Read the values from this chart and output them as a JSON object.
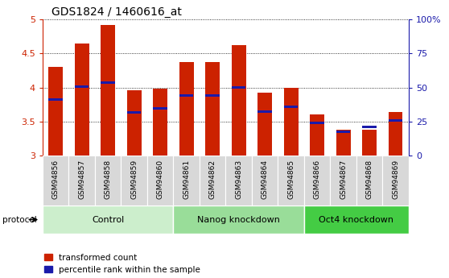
{
  "title": "GDS1824 / 1460616_at",
  "samples": [
    "GSM94856",
    "GSM94857",
    "GSM94858",
    "GSM94859",
    "GSM94860",
    "GSM94861",
    "GSM94862",
    "GSM94863",
    "GSM94864",
    "GSM94865",
    "GSM94866",
    "GSM94867",
    "GSM94868",
    "GSM94869"
  ],
  "transformed_count": [
    4.3,
    4.65,
    4.92,
    3.96,
    3.99,
    4.38,
    4.38,
    4.62,
    3.92,
    4.0,
    3.6,
    3.38,
    3.38,
    3.64
  ],
  "percentile_rank": [
    3.82,
    4.01,
    4.07,
    3.63,
    3.69,
    3.88,
    3.88,
    4.0,
    3.65,
    3.72,
    3.48,
    3.35,
    3.42,
    3.52
  ],
  "ymin": 3.0,
  "ymax": 5.0,
  "yticks": [
    3.0,
    3.5,
    4.0,
    4.5,
    5.0
  ],
  "right_ytick_labels": [
    "0",
    "25",
    "50",
    "75",
    "100%"
  ],
  "right_ytick_vals": [
    3.0,
    3.5,
    4.0,
    4.5,
    5.0
  ],
  "bar_color": "#cc2200",
  "percentile_color": "#1a1aaa",
  "bar_width": 0.55,
  "groups": [
    {
      "label": "Control",
      "start": 0,
      "end": 5,
      "color": "#cceecc"
    },
    {
      "label": "Nanog knockdown",
      "start": 5,
      "end": 10,
      "color": "#99dd99"
    },
    {
      "label": "Oct4 knockdown",
      "start": 10,
      "end": 14,
      "color": "#44cc44"
    }
  ],
  "protocol_label": "protocol",
  "legend_red": "transformed count",
  "legend_blue": "percentile rank within the sample",
  "tick_label_fontsize": 6.5,
  "title_fontsize": 10,
  "group_label_fontsize": 8,
  "left_tick_color": "#cc2200",
  "right_tick_color": "#1a1aaa",
  "ticklabel_bg": "#d8d8d8",
  "plot_bg_color": "#ffffff"
}
